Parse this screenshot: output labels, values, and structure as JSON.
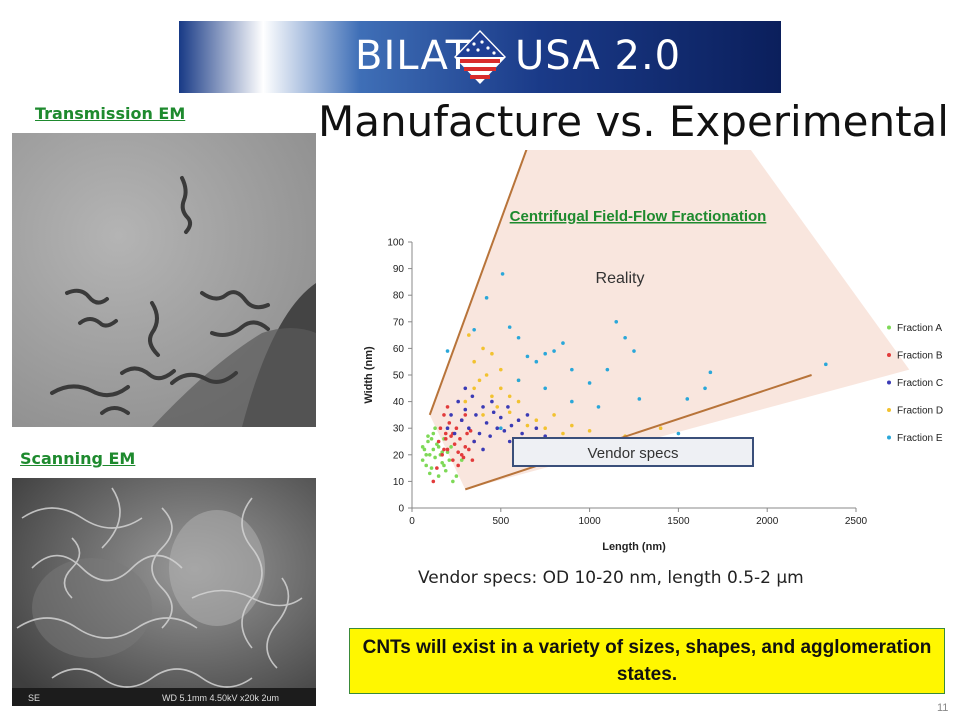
{
  "banner": {
    "left_text": "BILAT",
    "right_text": "USA 2.0"
  },
  "heading": "Manufacture vs. Experimental",
  "tem_caption": "Transmission EM",
  "sem_caption": "Scanning EM",
  "sem_info": {
    "left": "SE",
    "right": "WD 5.1mm 4.50kV x20k 2um"
  },
  "annotations": {
    "reality": "Reality",
    "vendor_box": "Vendor specs"
  },
  "vendor_text": "Vendor specs: OD 10-20 nm, length 0.5-2 µm",
  "conclusion": "CNTs will exist in a variety of sizes, shapes, and agglomeration states.",
  "page_number": "11",
  "colors": {
    "caption_green": "#1e8a2e",
    "highlight_yellow": "#fff700",
    "fraction_a": "#7ed957",
    "fraction_b": "#e23b3b",
    "fraction_c": "#3b3bb5",
    "fraction_d": "#f2c230",
    "fraction_e": "#2aa7d9",
    "bound_line": "#b8743a",
    "reality_fill": "#f8e2d8"
  },
  "chart_data": {
    "type": "scatter",
    "title": "Centrifugal Field-Flow Fractionation",
    "xlabel": "Length (nm)",
    "ylabel": "Width (nm)",
    "xlim": [
      0,
      2500
    ],
    "ylim": [
      0,
      100
    ],
    "xticks": [
      "0",
      "500",
      "1000",
      "1500",
      "2000",
      "2500"
    ],
    "yticks": [
      "0",
      "10",
      "20",
      "30",
      "40",
      "50",
      "60",
      "70",
      "80",
      "90",
      "100"
    ],
    "legend_position": "right",
    "series": [
      {
        "name": "Fraction A",
        "color": "#7ed957",
        "points": [
          [
            60,
            18
          ],
          [
            70,
            22
          ],
          [
            80,
            16
          ],
          [
            90,
            25
          ],
          [
            100,
            20
          ],
          [
            110,
            15
          ],
          [
            120,
            22
          ],
          [
            130,
            19
          ],
          [
            140,
            24
          ],
          [
            150,
            12
          ],
          [
            160,
            20
          ],
          [
            170,
            17
          ],
          [
            180,
            26
          ],
          [
            190,
            14
          ],
          [
            200,
            21
          ],
          [
            210,
            18
          ],
          [
            220,
            23
          ],
          [
            90,
            27
          ],
          [
            100,
            13
          ],
          [
            120,
            28
          ],
          [
            150,
            23
          ],
          [
            180,
            16
          ],
          [
            230,
            10
          ],
          [
            250,
            12
          ],
          [
            280,
            18
          ],
          [
            130,
            30
          ],
          [
            170,
            21
          ],
          [
            80,
            20
          ],
          [
            60,
            23
          ],
          [
            110,
            26
          ]
        ]
      },
      {
        "name": "Fraction B",
        "color": "#e23b3b",
        "points": [
          [
            150,
            25
          ],
          [
            160,
            30
          ],
          [
            170,
            20
          ],
          [
            180,
            35
          ],
          [
            190,
            28
          ],
          [
            200,
            22
          ],
          [
            210,
            32
          ],
          [
            220,
            27
          ],
          [
            230,
            18
          ],
          [
            240,
            24
          ],
          [
            250,
            30
          ],
          [
            260,
            21
          ],
          [
            270,
            26
          ],
          [
            280,
            33
          ],
          [
            290,
            19
          ],
          [
            300,
            23
          ],
          [
            310,
            28
          ],
          [
            320,
            22
          ],
          [
            330,
            29
          ],
          [
            350,
            25
          ],
          [
            120,
            10
          ],
          [
            140,
            15
          ],
          [
            200,
            38
          ],
          [
            260,
            16
          ],
          [
            300,
            35
          ],
          [
            180,
            22
          ],
          [
            230,
            28
          ],
          [
            280,
            20
          ],
          [
            340,
            18
          ],
          [
            190,
            26
          ]
        ]
      },
      {
        "name": "Fraction C",
        "color": "#3b3bb5",
        "points": [
          [
            200,
            30
          ],
          [
            220,
            35
          ],
          [
            240,
            28
          ],
          [
            260,
            40
          ],
          [
            280,
            33
          ],
          [
            300,
            37
          ],
          [
            320,
            30
          ],
          [
            340,
            42
          ],
          [
            360,
            35
          ],
          [
            380,
            28
          ],
          [
            400,
            38
          ],
          [
            420,
            32
          ],
          [
            440,
            27
          ],
          [
            460,
            36
          ],
          [
            480,
            30
          ],
          [
            500,
            34
          ],
          [
            520,
            29
          ],
          [
            540,
            38
          ],
          [
            560,
            31
          ],
          [
            580,
            26
          ],
          [
            600,
            33
          ],
          [
            620,
            28
          ],
          [
            650,
            35
          ],
          [
            700,
            30
          ],
          [
            750,
            27
          ],
          [
            300,
            45
          ],
          [
            350,
            25
          ],
          [
            400,
            22
          ],
          [
            450,
            40
          ],
          [
            550,
            25
          ]
        ]
      },
      {
        "name": "Fraction D",
        "color": "#f2c230",
        "points": [
          [
            300,
            40
          ],
          [
            320,
            65
          ],
          [
            350,
            45
          ],
          [
            380,
            48
          ],
          [
            400,
            35
          ],
          [
            420,
            50
          ],
          [
            450,
            42
          ],
          [
            480,
            38
          ],
          [
            500,
            52
          ],
          [
            550,
            36
          ],
          [
            600,
            40
          ],
          [
            650,
            31
          ],
          [
            700,
            33
          ],
          [
            750,
            30
          ],
          [
            800,
            35
          ],
          [
            850,
            28
          ],
          [
            900,
            31
          ],
          [
            950,
            25
          ],
          [
            1000,
            29
          ],
          [
            1100,
            24
          ],
          [
            1200,
            27
          ],
          [
            1300,
            22
          ],
          [
            1400,
            30
          ],
          [
            400,
            60
          ],
          [
            500,
            45
          ],
          [
            600,
            48
          ],
          [
            700,
            25
          ],
          [
            350,
            55
          ],
          [
            450,
            58
          ],
          [
            550,
            42
          ]
        ]
      },
      {
        "name": "Fraction E",
        "color": "#2aa7d9",
        "points": [
          [
            200,
            59
          ],
          [
            350,
            67
          ],
          [
            420,
            79
          ],
          [
            510,
            88
          ],
          [
            550,
            68
          ],
          [
            600,
            64
          ],
          [
            650,
            57
          ],
          [
            700,
            55
          ],
          [
            750,
            58
          ],
          [
            800,
            59
          ],
          [
            850,
            62
          ],
          [
            900,
            52
          ],
          [
            1000,
            47
          ],
          [
            1100,
            52
          ],
          [
            1150,
            70
          ],
          [
            1200,
            64
          ],
          [
            1250,
            59
          ],
          [
            1280,
            41
          ],
          [
            1550,
            41
          ],
          [
            1650,
            45
          ],
          [
            1680,
            51
          ],
          [
            2330,
            54
          ],
          [
            600,
            48
          ],
          [
            750,
            45
          ],
          [
            900,
            40
          ],
          [
            1050,
            38
          ],
          [
            1500,
            28
          ],
          [
            1650,
            24
          ],
          [
            800,
            25
          ],
          [
            500,
            30
          ]
        ]
      }
    ],
    "overlay_lines": [
      {
        "from": [
          100,
          35
        ],
        "to": [
          810,
          165
        ]
      },
      {
        "from": [
          300,
          7
        ],
        "to": [
          2250,
          50
        ]
      }
    ],
    "reality_region": [
      [
        100,
        35
      ],
      [
        810,
        165
      ],
      [
        1580,
        165
      ],
      [
        2800,
        52
      ],
      [
        300,
        7
      ]
    ]
  }
}
